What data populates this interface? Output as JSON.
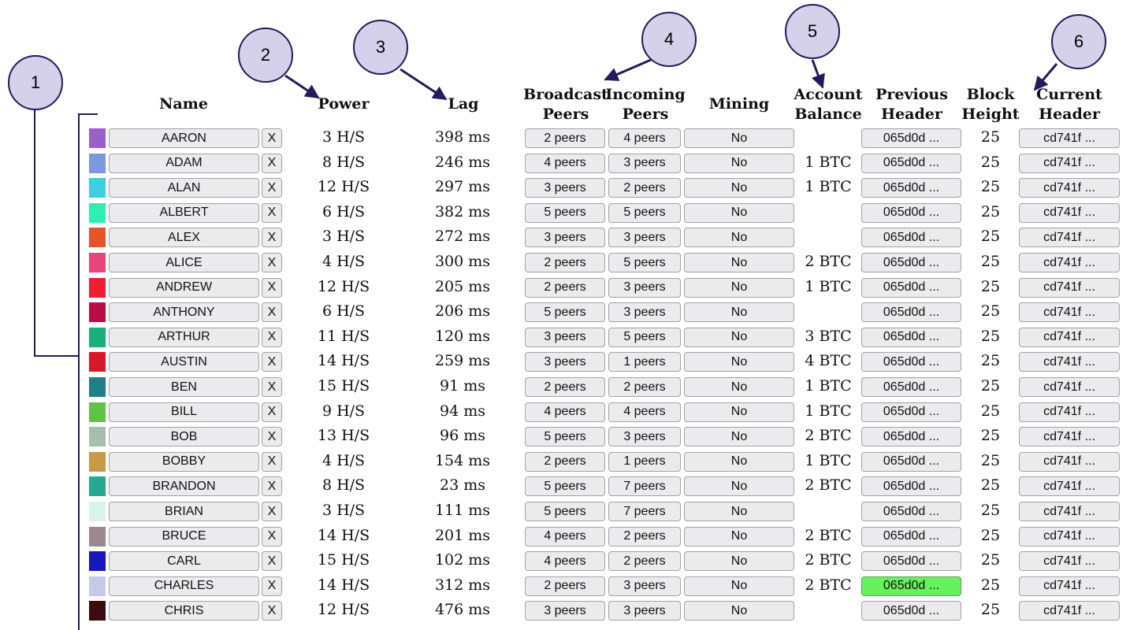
{
  "headers": {
    "name": "Name",
    "power": "Power",
    "lag": "Lag",
    "broadcast_1": "Broadcast",
    "broadcast_2": "Peers",
    "incoming_1": "Incoming",
    "incoming_2": "Peers",
    "mining": "Mining",
    "balance_1": "Account",
    "balance_2": "Balance",
    "prev_1": "Previous",
    "prev_2": "Header",
    "height_1": "Block",
    "height_2": "Height",
    "curr_1": "Current",
    "curr_2": "Header"
  },
  "callouts": [
    "1",
    "2",
    "3",
    "4",
    "5",
    "6"
  ],
  "remove_label": "X",
  "rows": [
    {
      "name": "AARON",
      "color": "#9c5fc8",
      "power": "3 H/S",
      "lag": "398 ms",
      "broadcast": "2 peers",
      "incoming": "4 peers",
      "mining": "No",
      "balance": "",
      "prev": "065d0d ...",
      "height": "25",
      "curr": "cd741f ...",
      "prev_highlight": false
    },
    {
      "name": "ADAM",
      "color": "#7c98e2",
      "power": "8 H/S",
      "lag": "246 ms",
      "broadcast": "4 peers",
      "incoming": "3 peers",
      "mining": "No",
      "balance": "1 BTC",
      "prev": "065d0d ...",
      "height": "25",
      "curr": "cd741f ...",
      "prev_highlight": false
    },
    {
      "name": "ALAN",
      "color": "#3ccfe0",
      "power": "12 H/S",
      "lag": "297 ms",
      "broadcast": "3 peers",
      "incoming": "2 peers",
      "mining": "No",
      "balance": "1 BTC",
      "prev": "065d0d ...",
      "height": "25",
      "curr": "cd741f ...",
      "prev_highlight": false
    },
    {
      "name": "ALBERT",
      "color": "#2cf0b0",
      "power": "6 H/S",
      "lag": "382 ms",
      "broadcast": "5 peers",
      "incoming": "5 peers",
      "mining": "No",
      "balance": "",
      "prev": "065d0d ...",
      "height": "25",
      "curr": "cd741f ...",
      "prev_highlight": false
    },
    {
      "name": "ALEX",
      "color": "#e8532a",
      "power": "3 H/S",
      "lag": "272 ms",
      "broadcast": "3 peers",
      "incoming": "3 peers",
      "mining": "No",
      "balance": "",
      "prev": "065d0d ...",
      "height": "25",
      "curr": "cd741f ...",
      "prev_highlight": false
    },
    {
      "name": "ALICE",
      "color": "#e8457a",
      "power": "4 H/S",
      "lag": "300 ms",
      "broadcast": "2 peers",
      "incoming": "5 peers",
      "mining": "No",
      "balance": "2 BTC",
      "prev": "065d0d ...",
      "height": "25",
      "curr": "cd741f ...",
      "prev_highlight": false
    },
    {
      "name": "ANDREW",
      "color": "#f21c35",
      "power": "12 H/S",
      "lag": "205 ms",
      "broadcast": "2 peers",
      "incoming": "3 peers",
      "mining": "No",
      "balance": "1 BTC",
      "prev": "065d0d ...",
      "height": "25",
      "curr": "cd741f ...",
      "prev_highlight": false
    },
    {
      "name": "ANTHONY",
      "color": "#b80c47",
      "power": "6 H/S",
      "lag": "206 ms",
      "broadcast": "5 peers",
      "incoming": "3 peers",
      "mining": "No",
      "balance": "",
      "prev": "065d0d ...",
      "height": "25",
      "curr": "cd741f ...",
      "prev_highlight": false
    },
    {
      "name": "ARTHUR",
      "color": "#17b079",
      "power": "11 H/S",
      "lag": "120 ms",
      "broadcast": "3 peers",
      "incoming": "5 peers",
      "mining": "No",
      "balance": "3 BTC",
      "prev": "065d0d ...",
      "height": "25",
      "curr": "cd741f ...",
      "prev_highlight": false
    },
    {
      "name": "AUSTIN",
      "color": "#d8172a",
      "power": "14 H/S",
      "lag": "259 ms",
      "broadcast": "3 peers",
      "incoming": "1 peers",
      "mining": "No",
      "balance": "4 BTC",
      "prev": "065d0d ...",
      "height": "25",
      "curr": "cd741f ...",
      "prev_highlight": false
    },
    {
      "name": "BEN",
      "color": "#217f8a",
      "power": "15 H/S",
      "lag": "91 ms",
      "broadcast": "2 peers",
      "incoming": "2 peers",
      "mining": "No",
      "balance": "1 BTC",
      "prev": "065d0d ...",
      "height": "25",
      "curr": "cd741f ...",
      "prev_highlight": false
    },
    {
      "name": "BILL",
      "color": "#5fc446",
      "power": "9 H/S",
      "lag": "94 ms",
      "broadcast": "4 peers",
      "incoming": "4 peers",
      "mining": "No",
      "balance": "1 BTC",
      "prev": "065d0d ...",
      "height": "25",
      "curr": "cd741f ...",
      "prev_highlight": false
    },
    {
      "name": "BOB",
      "color": "#a7bdb0",
      "power": "13 H/S",
      "lag": "96 ms",
      "broadcast": "5 peers",
      "incoming": "3 peers",
      "mining": "No",
      "balance": "2 BTC",
      "prev": "065d0d ...",
      "height": "25",
      "curr": "cd741f ...",
      "prev_highlight": false
    },
    {
      "name": "BOBBY",
      "color": "#c99a45",
      "power": "4 H/S",
      "lag": "154 ms",
      "broadcast": "2 peers",
      "incoming": "1 peers",
      "mining": "No",
      "balance": "1 BTC",
      "prev": "065d0d ...",
      "height": "25",
      "curr": "cd741f ...",
      "prev_highlight": false
    },
    {
      "name": "BRANDON",
      "color": "#23a98f",
      "power": "8 H/S",
      "lag": "23 ms",
      "broadcast": "5 peers",
      "incoming": "7 peers",
      "mining": "No",
      "balance": "2 BTC",
      "prev": "065d0d ...",
      "height": "25",
      "curr": "cd741f ...",
      "prev_highlight": false
    },
    {
      "name": "BRIAN",
      "color": "#d8f3e8",
      "power": "3 H/S",
      "lag": "111 ms",
      "broadcast": "5 peers",
      "incoming": "7 peers",
      "mining": "No",
      "balance": "",
      "prev": "065d0d ...",
      "height": "25",
      "curr": "cd741f ...",
      "prev_highlight": false
    },
    {
      "name": "BRUCE",
      "color": "#9a8a8f",
      "power": "14 H/S",
      "lag": "201 ms",
      "broadcast": "4 peers",
      "incoming": "2 peers",
      "mining": "No",
      "balance": "2 BTC",
      "prev": "065d0d ...",
      "height": "25",
      "curr": "cd741f ...",
      "prev_highlight": false
    },
    {
      "name": "CARL",
      "color": "#1717c0",
      "power": "15 H/S",
      "lag": "102 ms",
      "broadcast": "4 peers",
      "incoming": "2 peers",
      "mining": "No",
      "balance": "2 BTC",
      "prev": "065d0d ...",
      "height": "25",
      "curr": "cd741f ...",
      "prev_highlight": false
    },
    {
      "name": "CHARLES",
      "color": "#c8c8ec",
      "power": "14 H/S",
      "lag": "312 ms",
      "broadcast": "2 peers",
      "incoming": "3 peers",
      "mining": "No",
      "balance": "2 BTC",
      "prev": "065d0d ...",
      "height": "25",
      "curr": "cd741f ...",
      "prev_highlight": true
    },
    {
      "name": "CHRIS",
      "color": "#3a0c10",
      "power": "12 H/S",
      "lag": "476 ms",
      "broadcast": "3 peers",
      "incoming": "3 peers",
      "mining": "No",
      "balance": "",
      "prev": "065d0d ...",
      "height": "25",
      "curr": "cd741f ...",
      "prev_highlight": false
    }
  ]
}
